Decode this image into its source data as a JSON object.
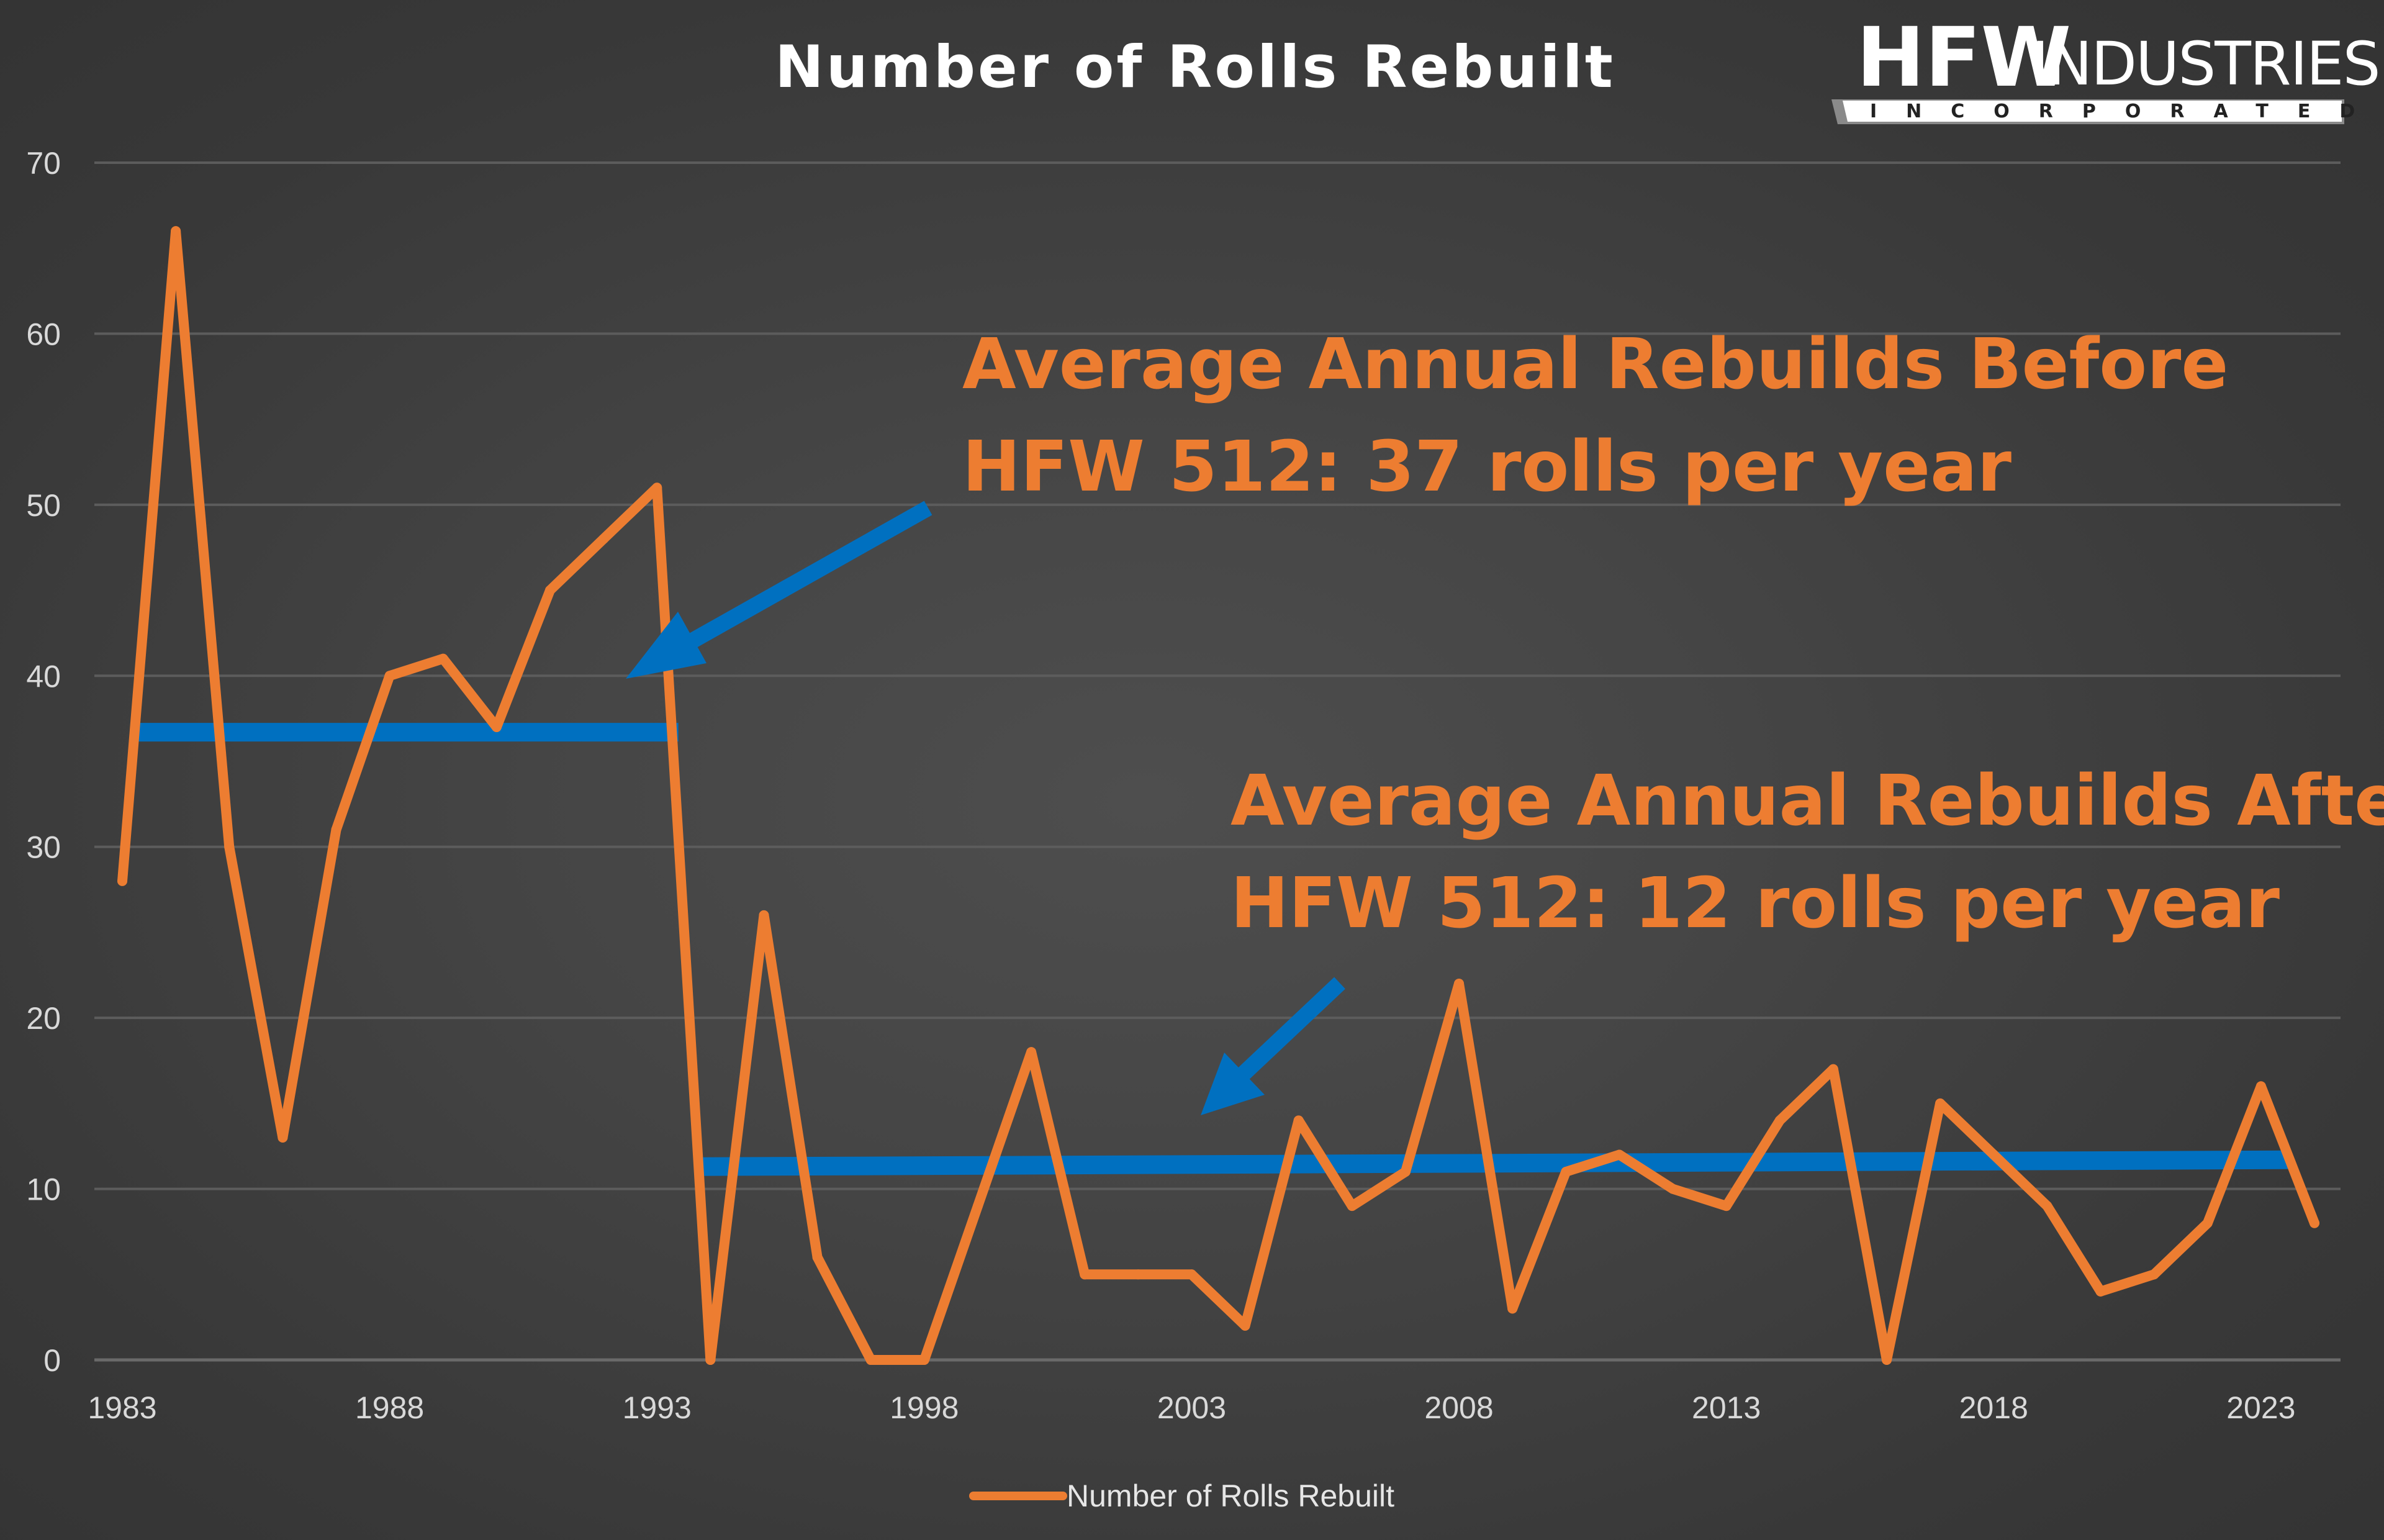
{
  "chart_data": {
    "type": "line",
    "title": "Number of Rolls Rebuilt",
    "xlabel": "",
    "ylabel": "",
    "ylim": [
      0,
      70
    ],
    "yticks": [
      "0",
      "10",
      "20",
      "30",
      "40",
      "50",
      "60",
      "70"
    ],
    "xticks": [
      "1983",
      "1988",
      "1993",
      "1998",
      "2003",
      "2008",
      "2013",
      "2018",
      "2023"
    ],
    "grid": true,
    "legend": "bottom",
    "series": [
      {
        "name": "Number of Rolls Rebuilt",
        "color": "#ED7D31",
        "x": [
          1983,
          1984,
          1985,
          1986,
          1987,
          1988,
          1989,
          1990,
          1991,
          1992,
          1993,
          1994,
          1995,
          1996,
          1997,
          1998,
          1999,
          2000,
          2001,
          2002,
          2003,
          2004,
          2005,
          2006,
          2007,
          2008,
          2009,
          2010,
          2011,
          2012,
          2013,
          2014,
          2015,
          2016,
          2017,
          2018,
          2019,
          2020,
          2021,
          2022,
          2023,
          2024
        ],
        "values": [
          28,
          66,
          30,
          13,
          31,
          40,
          41,
          37,
          45,
          48,
          51,
          0,
          26,
          6,
          0,
          0,
          9,
          18,
          5,
          5,
          5,
          2,
          14,
          9,
          11,
          22,
          3,
          11,
          12,
          10,
          9,
          14,
          17,
          0,
          15,
          12,
          9,
          4,
          5,
          8,
          16,
          8
        ]
      }
    ],
    "reference_lines": [
      {
        "color": "#0070C0",
        "x_start": 1983.15,
        "x_end": 1993.4,
        "y": 36.7
      },
      {
        "color": "#0070C0",
        "x_start": 1993.7,
        "x_end": 2023.5,
        "y_start": 11.3,
        "y_end": 11.7
      }
    ],
    "annotations": [
      {
        "lines": [
          "Average Annual Rebuilds Before",
          "HFW 512: 37 rolls per year"
        ],
        "color": "#ED7D31"
      },
      {
        "lines": [
          "Average Annual Rebuilds After",
          "HFW 512: 12 rolls per year"
        ],
        "color": "#ED7D31"
      }
    ],
    "arrows": [
      {
        "color": "#0070C0",
        "points_to": "before-average-line"
      },
      {
        "color": "#0070C0",
        "points_to": "after-average-line"
      }
    ]
  },
  "logo": {
    "brand": "HFW",
    "name": "INDUSTRIES",
    "subtitle": "INCORPORATED"
  }
}
